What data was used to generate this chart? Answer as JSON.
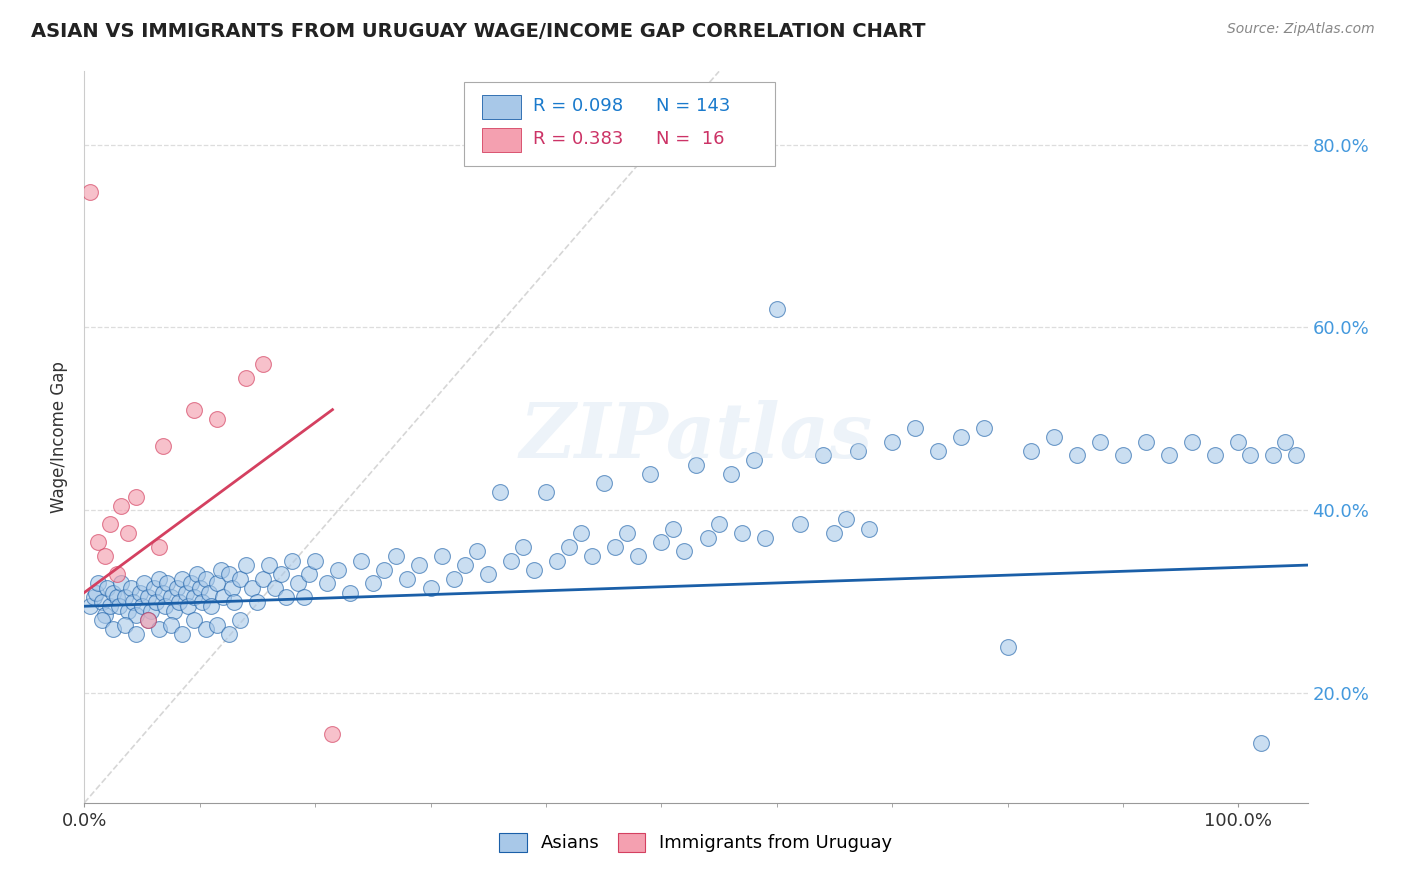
{
  "title": "ASIAN VS IMMIGRANTS FROM URUGUAY WAGE/INCOME GAP CORRELATION CHART",
  "source_text": "Source: ZipAtlas.com",
  "ylabel": "Wage/Income Gap",
  "xlim": [
    0.0,
    1.06
  ],
  "ylim": [
    0.08,
    0.88
  ],
  "yticks": [
    0.2,
    0.4,
    0.6,
    0.8
  ],
  "ytick_labels": [
    "20.0%",
    "40.0%",
    "60.0%",
    "80.0%"
  ],
  "blue_color": "#a8c8e8",
  "pink_color": "#f4a0b0",
  "blue_line_color": "#1a5fa8",
  "pink_line_color": "#d44060",
  "r_value_color_blue": "#1a7acc",
  "r_value_color_pink": "#cc3366",
  "watermark": "ZIPatlas",
  "asian_x": [
    0.005,
    0.008,
    0.01,
    0.012,
    0.015,
    0.018,
    0.02,
    0.022,
    0.025,
    0.028,
    0.03,
    0.032,
    0.035,
    0.038,
    0.04,
    0.042,
    0.045,
    0.048,
    0.05,
    0.052,
    0.055,
    0.058,
    0.06,
    0.062,
    0.065,
    0.068,
    0.07,
    0.072,
    0.075,
    0.078,
    0.08,
    0.082,
    0.085,
    0.088,
    0.09,
    0.092,
    0.095,
    0.098,
    0.1,
    0.102,
    0.105,
    0.108,
    0.11,
    0.115,
    0.118,
    0.12,
    0.125,
    0.128,
    0.13,
    0.135,
    0.14,
    0.145,
    0.15,
    0.155,
    0.16,
    0.165,
    0.17,
    0.175,
    0.18,
    0.185,
    0.19,
    0.195,
    0.2,
    0.21,
    0.22,
    0.23,
    0.24,
    0.25,
    0.26,
    0.27,
    0.28,
    0.29,
    0.3,
    0.31,
    0.32,
    0.33,
    0.34,
    0.35,
    0.36,
    0.37,
    0.38,
    0.39,
    0.4,
    0.41,
    0.42,
    0.43,
    0.44,
    0.45,
    0.46,
    0.47,
    0.48,
    0.49,
    0.5,
    0.51,
    0.52,
    0.53,
    0.54,
    0.55,
    0.56,
    0.57,
    0.58,
    0.59,
    0.6,
    0.62,
    0.64,
    0.65,
    0.66,
    0.67,
    0.68,
    0.7,
    0.72,
    0.74,
    0.76,
    0.78,
    0.8,
    0.82,
    0.84,
    0.86,
    0.88,
    0.9,
    0.92,
    0.94,
    0.96,
    0.98,
    1.0,
    1.01,
    1.02,
    1.03,
    1.04,
    1.05,
    0.015,
    0.025,
    0.035,
    0.045,
    0.055,
    0.065,
    0.075,
    0.085,
    0.095,
    0.105,
    0.115,
    0.125,
    0.135
  ],
  "asian_y": [
    0.295,
    0.305,
    0.31,
    0.32,
    0.3,
    0.285,
    0.315,
    0.295,
    0.31,
    0.305,
    0.295,
    0.32,
    0.305,
    0.29,
    0.315,
    0.3,
    0.285,
    0.31,
    0.295,
    0.32,
    0.305,
    0.29,
    0.315,
    0.3,
    0.325,
    0.31,
    0.295,
    0.32,
    0.305,
    0.29,
    0.315,
    0.3,
    0.325,
    0.31,
    0.295,
    0.32,
    0.305,
    0.33,
    0.315,
    0.3,
    0.325,
    0.31,
    0.295,
    0.32,
    0.335,
    0.305,
    0.33,
    0.315,
    0.3,
    0.325,
    0.34,
    0.315,
    0.3,
    0.325,
    0.34,
    0.315,
    0.33,
    0.305,
    0.345,
    0.32,
    0.305,
    0.33,
    0.345,
    0.32,
    0.335,
    0.31,
    0.345,
    0.32,
    0.335,
    0.35,
    0.325,
    0.34,
    0.315,
    0.35,
    0.325,
    0.34,
    0.355,
    0.33,
    0.42,
    0.345,
    0.36,
    0.335,
    0.42,
    0.345,
    0.36,
    0.375,
    0.35,
    0.43,
    0.36,
    0.375,
    0.35,
    0.44,
    0.365,
    0.38,
    0.355,
    0.45,
    0.37,
    0.385,
    0.44,
    0.375,
    0.455,
    0.37,
    0.62,
    0.385,
    0.46,
    0.375,
    0.39,
    0.465,
    0.38,
    0.475,
    0.49,
    0.465,
    0.48,
    0.49,
    0.25,
    0.465,
    0.48,
    0.46,
    0.475,
    0.46,
    0.475,
    0.46,
    0.475,
    0.46,
    0.475,
    0.46,
    0.145,
    0.46,
    0.475,
    0.46,
    0.28,
    0.27,
    0.275,
    0.265,
    0.28,
    0.27,
    0.275,
    0.265,
    0.28,
    0.27,
    0.275,
    0.265,
    0.28
  ],
  "uruguay_x": [
    0.005,
    0.012,
    0.018,
    0.022,
    0.028,
    0.032,
    0.038,
    0.045,
    0.055,
    0.065,
    0.068,
    0.095,
    0.115,
    0.14,
    0.155,
    0.215
  ],
  "uruguay_y": [
    0.748,
    0.365,
    0.35,
    0.385,
    0.33,
    0.405,
    0.375,
    0.415,
    0.28,
    0.36,
    0.47,
    0.51,
    0.5,
    0.545,
    0.56,
    0.155
  ],
  "blue_trend_x": [
    0.0,
    1.06
  ],
  "blue_trend_y": [
    0.295,
    0.34
  ],
  "pink_trend_x": [
    0.0,
    0.215
  ],
  "pink_trend_y": [
    0.31,
    0.51
  ]
}
